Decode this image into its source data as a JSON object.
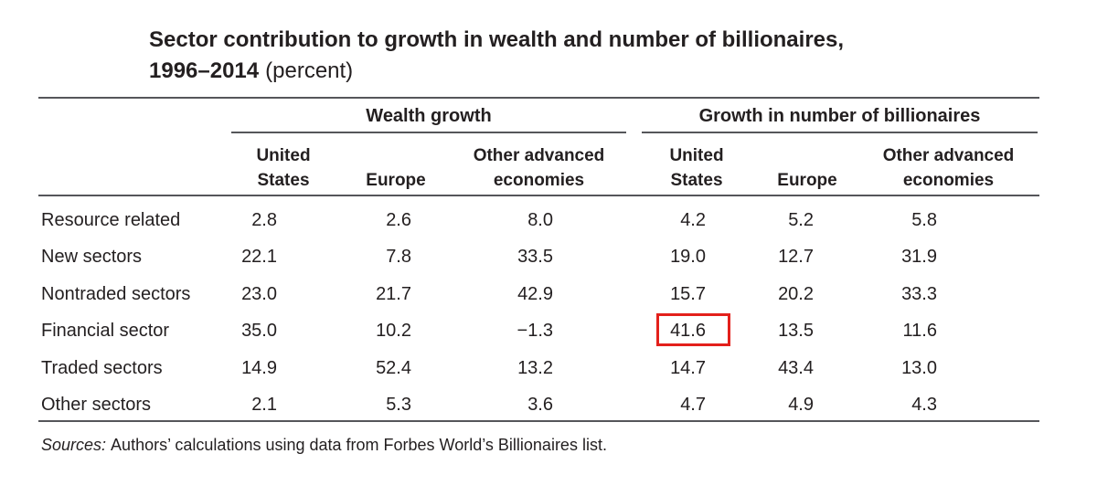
{
  "chart_data": {
    "type": "table",
    "title_line1": "Sector contribution to growth in wealth and number of billionaires,",
    "title_line2_bold": "1996–2014",
    "title_line2_normal": "(percent)",
    "column_groups": [
      {
        "label": "Wealth growth",
        "columns": [
          "United States",
          "Europe",
          "Other advanced economies"
        ]
      },
      {
        "label": "Growth in number of billionaires",
        "columns": [
          "United States",
          "Europe",
          "Other advanced economies"
        ]
      }
    ],
    "rows": [
      {
        "label": "Resource related",
        "values": [
          "2.8",
          "2.6",
          "8.0",
          "4.2",
          "5.2",
          "5.8"
        ]
      },
      {
        "label": "New sectors",
        "values": [
          "22.1",
          "7.8",
          "33.5",
          "19.0",
          "12.7",
          "31.9"
        ]
      },
      {
        "label": "Nontraded sectors",
        "values": [
          "23.0",
          "21.7",
          "42.9",
          "15.7",
          "20.2",
          "33.3"
        ]
      },
      {
        "label": "Financial sector",
        "values": [
          "35.0",
          "10.2",
          "−1.3",
          "41.6",
          "13.5",
          "11.6"
        ]
      },
      {
        "label": "Traded sectors",
        "values": [
          "14.9",
          "52.4",
          "13.2",
          "14.7",
          "43.4",
          "13.0"
        ]
      },
      {
        "label": "Other sectors",
        "values": [
          "2.1",
          "5.3",
          "3.6",
          "4.7",
          "4.9",
          "4.3"
        ]
      }
    ],
    "highlight": {
      "value": "41.6",
      "row": "Financial sector",
      "group": "Growth in number of billionaires",
      "column": "United States",
      "box_color": "#e3201b"
    },
    "text_color": "#231f20",
    "rule_color": "#55565a",
    "source_prefix": "Sources:",
    "source_text": "Authors’ calculations using data from Forbes World’s Billionaires list."
  }
}
